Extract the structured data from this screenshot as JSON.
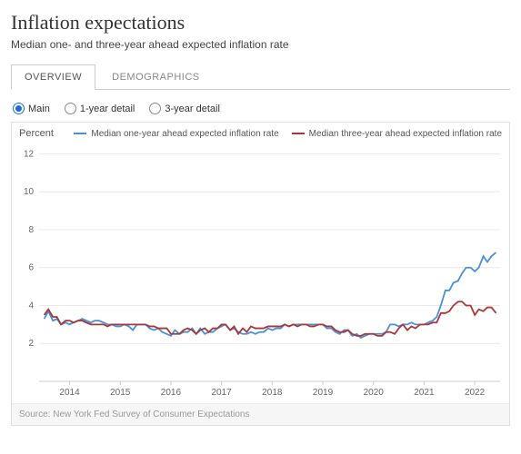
{
  "header": {
    "title": "Inflation expectations",
    "subtitle": "Median one- and three-year ahead expected inflation rate"
  },
  "tabs": [
    {
      "label": "OVERVIEW",
      "active": true
    },
    {
      "label": "DEMOGRAPHICS",
      "active": false
    }
  ],
  "radios": [
    {
      "label": "Main",
      "selected": true
    },
    {
      "label": "1-year detail",
      "selected": false
    },
    {
      "label": "3-year detail",
      "selected": false
    }
  ],
  "chart": {
    "type": "line",
    "ylabel": "Percent",
    "ylim": [
      0,
      12.5
    ],
    "ytick_step": 2,
    "yticks": [
      2,
      4,
      6,
      8,
      10,
      12
    ],
    "x_start": 2013.4,
    "x_end": 2022.5,
    "xticks": [
      2014,
      2015,
      2016,
      2017,
      2018,
      2019,
      2020,
      2021,
      2022
    ],
    "background_color": "#ffffff",
    "grid_color": "#e8e8e8",
    "axis_label_color": "#666666",
    "tick_fontsize": 10,
    "legend_fontsize": 10,
    "line_width": 1.8,
    "series": [
      {
        "name": "Median one-year ahead expected inflation rate",
        "color": "#4a90d9",
        "points": [
          [
            2013.5,
            3.3
          ],
          [
            2013.58,
            3.7
          ],
          [
            2013.67,
            3.2
          ],
          [
            2013.75,
            3.3
          ],
          [
            2013.83,
            3.0
          ],
          [
            2013.92,
            3.1
          ],
          [
            2014.0,
            3.0
          ],
          [
            2014.08,
            3.1
          ],
          [
            2014.17,
            3.2
          ],
          [
            2014.25,
            3.3
          ],
          [
            2014.33,
            3.2
          ],
          [
            2014.42,
            3.1
          ],
          [
            2014.5,
            3.2
          ],
          [
            2014.58,
            3.2
          ],
          [
            2014.67,
            3.1
          ],
          [
            2014.75,
            3.0
          ],
          [
            2014.83,
            3.0
          ],
          [
            2014.92,
            2.9
          ],
          [
            2015.0,
            2.9
          ],
          [
            2015.08,
            3.0
          ],
          [
            2015.17,
            2.9
          ],
          [
            2015.25,
            2.7
          ],
          [
            2015.33,
            3.0
          ],
          [
            2015.42,
            3.0
          ],
          [
            2015.5,
            3.0
          ],
          [
            2015.58,
            2.8
          ],
          [
            2015.67,
            2.7
          ],
          [
            2015.75,
            2.8
          ],
          [
            2015.83,
            2.6
          ],
          [
            2015.92,
            2.5
          ],
          [
            2016.0,
            2.4
          ],
          [
            2016.08,
            2.7
          ],
          [
            2016.17,
            2.5
          ],
          [
            2016.25,
            2.6
          ],
          [
            2016.33,
            2.6
          ],
          [
            2016.42,
            2.8
          ],
          [
            2016.5,
            2.5
          ],
          [
            2016.58,
            2.8
          ],
          [
            2016.67,
            2.5
          ],
          [
            2016.75,
            2.6
          ],
          [
            2016.83,
            2.6
          ],
          [
            2016.92,
            2.8
          ],
          [
            2017.0,
            2.9
          ],
          [
            2017.08,
            3.0
          ],
          [
            2017.17,
            2.7
          ],
          [
            2017.25,
            2.8
          ],
          [
            2017.33,
            2.6
          ],
          [
            2017.42,
            2.5
          ],
          [
            2017.5,
            2.5
          ],
          [
            2017.58,
            2.6
          ],
          [
            2017.67,
            2.5
          ],
          [
            2017.75,
            2.6
          ],
          [
            2017.83,
            2.6
          ],
          [
            2017.92,
            2.8
          ],
          [
            2018.0,
            2.7
          ],
          [
            2018.08,
            2.8
          ],
          [
            2018.17,
            2.8
          ],
          [
            2018.25,
            3.0
          ],
          [
            2018.33,
            2.9
          ],
          [
            2018.42,
            3.0
          ],
          [
            2018.5,
            3.0
          ],
          [
            2018.58,
            3.0
          ],
          [
            2018.67,
            3.0
          ],
          [
            2018.75,
            3.0
          ],
          [
            2018.83,
            3.0
          ],
          [
            2018.92,
            3.0
          ],
          [
            2019.0,
            3.0
          ],
          [
            2019.08,
            2.8
          ],
          [
            2019.17,
            2.8
          ],
          [
            2019.25,
            2.6
          ],
          [
            2019.33,
            2.5
          ],
          [
            2019.42,
            2.7
          ],
          [
            2019.5,
            2.7
          ],
          [
            2019.58,
            2.4
          ],
          [
            2019.67,
            2.5
          ],
          [
            2019.75,
            2.3
          ],
          [
            2019.83,
            2.4
          ],
          [
            2019.92,
            2.5
          ],
          [
            2020.0,
            2.5
          ],
          [
            2020.08,
            2.5
          ],
          [
            2020.17,
            2.5
          ],
          [
            2020.25,
            2.6
          ],
          [
            2020.33,
            3.0
          ],
          [
            2020.42,
            3.0
          ],
          [
            2020.5,
            2.9
          ],
          [
            2020.58,
            3.0
          ],
          [
            2020.67,
            3.0
          ],
          [
            2020.75,
            3.1
          ],
          [
            2020.83,
            3.0
          ],
          [
            2020.92,
            3.0
          ],
          [
            2021.0,
            3.0
          ],
          [
            2021.08,
            3.1
          ],
          [
            2021.17,
            3.2
          ],
          [
            2021.25,
            3.4
          ],
          [
            2021.33,
            4.0
          ],
          [
            2021.42,
            4.8
          ],
          [
            2021.5,
            4.8
          ],
          [
            2021.58,
            5.2
          ],
          [
            2021.67,
            5.3
          ],
          [
            2021.75,
            5.7
          ],
          [
            2021.83,
            6.0
          ],
          [
            2021.92,
            6.0
          ],
          [
            2022.0,
            5.8
          ],
          [
            2022.08,
            6.0
          ],
          [
            2022.17,
            6.6
          ],
          [
            2022.25,
            6.3
          ],
          [
            2022.33,
            6.6
          ],
          [
            2022.42,
            6.8
          ]
        ]
      },
      {
        "name": "Median three-year ahead expected inflation rate",
        "color": "#a63a3a",
        "points": [
          [
            2013.5,
            3.5
          ],
          [
            2013.58,
            3.8
          ],
          [
            2013.67,
            3.4
          ],
          [
            2013.75,
            3.4
          ],
          [
            2013.83,
            3.0
          ],
          [
            2013.92,
            3.2
          ],
          [
            2014.0,
            3.2
          ],
          [
            2014.08,
            3.1
          ],
          [
            2014.17,
            3.2
          ],
          [
            2014.25,
            3.2
          ],
          [
            2014.33,
            3.1
          ],
          [
            2014.42,
            3.0
          ],
          [
            2014.5,
            3.0
          ],
          [
            2014.58,
            3.0
          ],
          [
            2014.67,
            3.0
          ],
          [
            2014.75,
            2.9
          ],
          [
            2014.83,
            3.0
          ],
          [
            2014.92,
            3.0
          ],
          [
            2015.0,
            3.0
          ],
          [
            2015.08,
            3.0
          ],
          [
            2015.17,
            3.0
          ],
          [
            2015.25,
            3.0
          ],
          [
            2015.33,
            3.0
          ],
          [
            2015.42,
            3.0
          ],
          [
            2015.5,
            3.0
          ],
          [
            2015.58,
            2.9
          ],
          [
            2015.67,
            2.9
          ],
          [
            2015.75,
            2.8
          ],
          [
            2015.83,
            2.8
          ],
          [
            2015.92,
            2.8
          ],
          [
            2016.0,
            2.5
          ],
          [
            2016.08,
            2.5
          ],
          [
            2016.17,
            2.5
          ],
          [
            2016.25,
            2.7
          ],
          [
            2016.33,
            2.8
          ],
          [
            2016.42,
            2.7
          ],
          [
            2016.5,
            2.5
          ],
          [
            2016.58,
            2.7
          ],
          [
            2016.67,
            2.8
          ],
          [
            2016.75,
            2.6
          ],
          [
            2016.83,
            2.8
          ],
          [
            2016.92,
            2.8
          ],
          [
            2017.0,
            3.0
          ],
          [
            2017.08,
            3.0
          ],
          [
            2017.17,
            2.7
          ],
          [
            2017.25,
            2.9
          ],
          [
            2017.33,
            2.5
          ],
          [
            2017.42,
            2.8
          ],
          [
            2017.5,
            2.6
          ],
          [
            2017.58,
            2.9
          ],
          [
            2017.67,
            2.8
          ],
          [
            2017.75,
            2.8
          ],
          [
            2017.83,
            2.8
          ],
          [
            2017.92,
            2.9
          ],
          [
            2018.0,
            2.9
          ],
          [
            2018.08,
            2.9
          ],
          [
            2018.17,
            2.9
          ],
          [
            2018.25,
            3.0
          ],
          [
            2018.33,
            2.9
          ],
          [
            2018.42,
            3.0
          ],
          [
            2018.5,
            2.9
          ],
          [
            2018.58,
            3.0
          ],
          [
            2018.67,
            3.0
          ],
          [
            2018.75,
            2.9
          ],
          [
            2018.83,
            2.9
          ],
          [
            2018.92,
            3.0
          ],
          [
            2019.0,
            3.0
          ],
          [
            2019.08,
            2.9
          ],
          [
            2019.17,
            2.9
          ],
          [
            2019.25,
            2.7
          ],
          [
            2019.33,
            2.6
          ],
          [
            2019.42,
            2.6
          ],
          [
            2019.5,
            2.7
          ],
          [
            2019.58,
            2.5
          ],
          [
            2019.67,
            2.4
          ],
          [
            2019.75,
            2.4
          ],
          [
            2019.83,
            2.5
          ],
          [
            2019.92,
            2.5
          ],
          [
            2020.0,
            2.5
          ],
          [
            2020.08,
            2.4
          ],
          [
            2020.17,
            2.4
          ],
          [
            2020.25,
            2.6
          ],
          [
            2020.33,
            2.6
          ],
          [
            2020.42,
            2.5
          ],
          [
            2020.5,
            2.8
          ],
          [
            2020.58,
            3.0
          ],
          [
            2020.67,
            2.7
          ],
          [
            2020.75,
            2.9
          ],
          [
            2020.83,
            2.8
          ],
          [
            2020.92,
            3.0
          ],
          [
            2021.0,
            3.0
          ],
          [
            2021.08,
            3.0
          ],
          [
            2021.17,
            3.1
          ],
          [
            2021.25,
            3.1
          ],
          [
            2021.33,
            3.6
          ],
          [
            2021.42,
            3.6
          ],
          [
            2021.5,
            3.7
          ],
          [
            2021.58,
            4.0
          ],
          [
            2021.67,
            4.2
          ],
          [
            2021.75,
            4.2
          ],
          [
            2021.83,
            4.0
          ],
          [
            2021.92,
            4.0
          ],
          [
            2022.0,
            3.5
          ],
          [
            2022.08,
            3.8
          ],
          [
            2022.17,
            3.7
          ],
          [
            2022.25,
            3.9
          ],
          [
            2022.33,
            3.9
          ],
          [
            2022.42,
            3.6
          ]
        ]
      }
    ]
  },
  "source": "Source: New York Fed Survey of Consumer Expectations"
}
